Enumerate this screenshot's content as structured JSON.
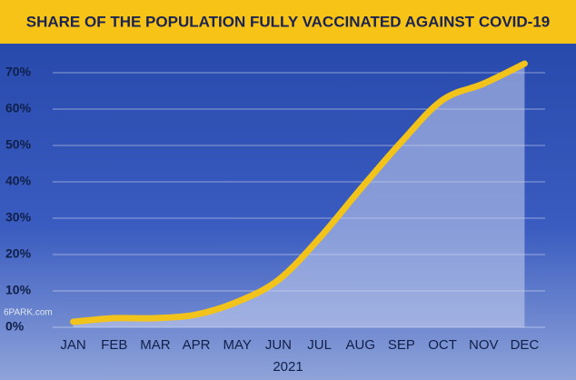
{
  "chart_data": {
    "type": "line",
    "title": "SHARE OF THE POPULATION FULLY VACCINATED AGAINST COVID-19",
    "x_label": "2021",
    "categories": [
      "JAN",
      "FEB",
      "MAR",
      "APR",
      "MAY",
      "JUN",
      "JUL",
      "AUG",
      "SEP",
      "OCT",
      "NOV",
      "DEC"
    ],
    "series": [
      {
        "name": "Fully vaccinated",
        "color": "#f2c31b",
        "values": [
          1.5,
          2.5,
          2.5,
          3.5,
          7,
          13,
          24.5,
          38,
          51,
          62.5,
          67,
          72.5
        ]
      }
    ],
    "ylim": [
      0,
      75
    ],
    "yticks": [
      {
        "value": 0,
        "label": "0%"
      },
      {
        "value": 10,
        "label": "10%"
      },
      {
        "value": 20,
        "label": "20%"
      },
      {
        "value": 30,
        "label": "30%"
      },
      {
        "value": 40,
        "label": "40%"
      },
      {
        "value": 50,
        "label": "50%"
      },
      {
        "value": 60,
        "label": "60%"
      },
      {
        "value": 70,
        "label": "70%"
      }
    ],
    "grid": true,
    "watermark": "6PARK.com"
  }
}
